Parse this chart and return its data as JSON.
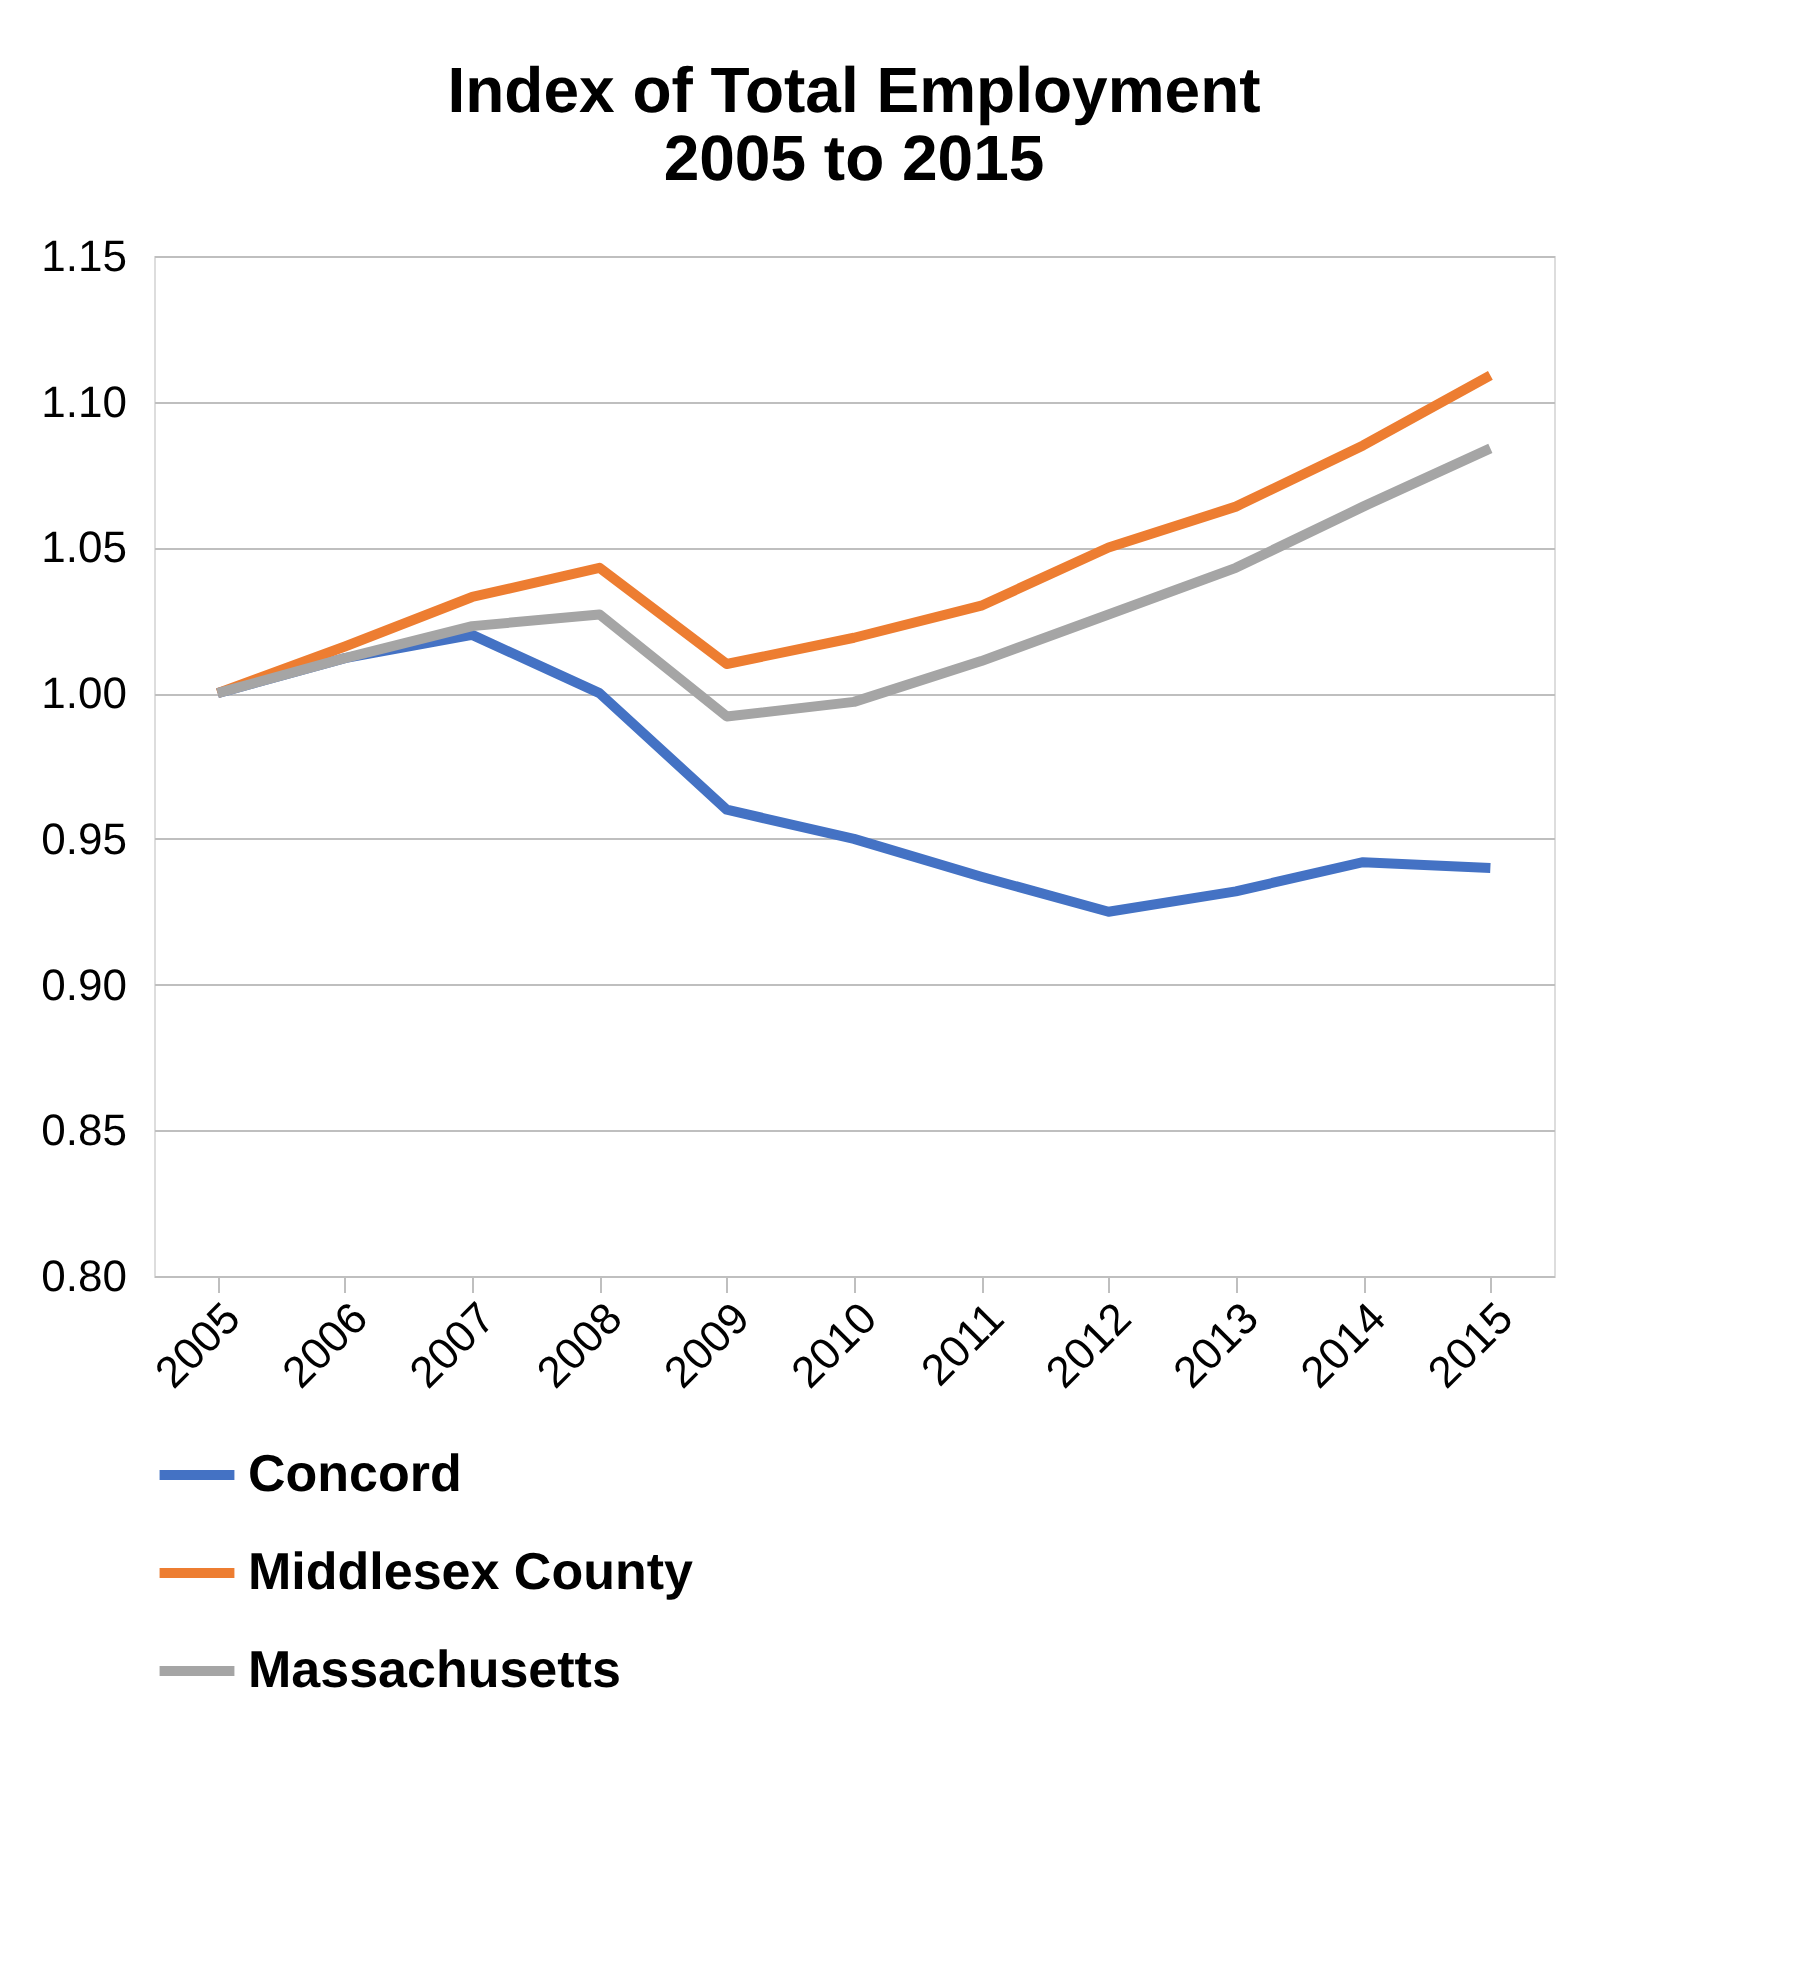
{
  "chart_data": {
    "type": "line",
    "title": "Index of Total Employment\n2005 to 2015",
    "categories": [
      "2005",
      "2006",
      "2007",
      "2008",
      "2009",
      "2010",
      "2011",
      "2012",
      "2013",
      "2014",
      "2015"
    ],
    "series": [
      {
        "name": "Concord",
        "color": "#4472c4",
        "values": [
          1.0,
          1.012,
          1.02,
          1.0,
          0.96,
          0.95,
          0.937,
          0.925,
          0.932,
          0.942,
          0.94
        ]
      },
      {
        "name": "Middlesex County",
        "color": "#ed7d31",
        "values": [
          1.0,
          1.016,
          1.033,
          1.043,
          1.01,
          1.019,
          1.03,
          1.05,
          1.064,
          1.085,
          1.109
        ]
      },
      {
        "name": "Massachusetts",
        "color": "#a5a5a5",
        "values": [
          1.0,
          1.012,
          1.023,
          1.027,
          0.992,
          0.997,
          1.011,
          1.027,
          1.043,
          1.064,
          1.084
        ]
      }
    ],
    "ylim": [
      0.8,
      1.15
    ],
    "yticks": [
      {
        "value": 0.8,
        "label": "0.80"
      },
      0.85,
      {
        "value": 0.9,
        "label": "0.90"
      },
      0.95,
      {
        "value": 1.0,
        "label": "1.00"
      },
      1.05,
      {
        "value": 1.1,
        "label": "1.10"
      },
      1.15
    ],
    "grid": "y",
    "legend": "bottom",
    "marker": "none",
    "line_style": "solid"
  }
}
